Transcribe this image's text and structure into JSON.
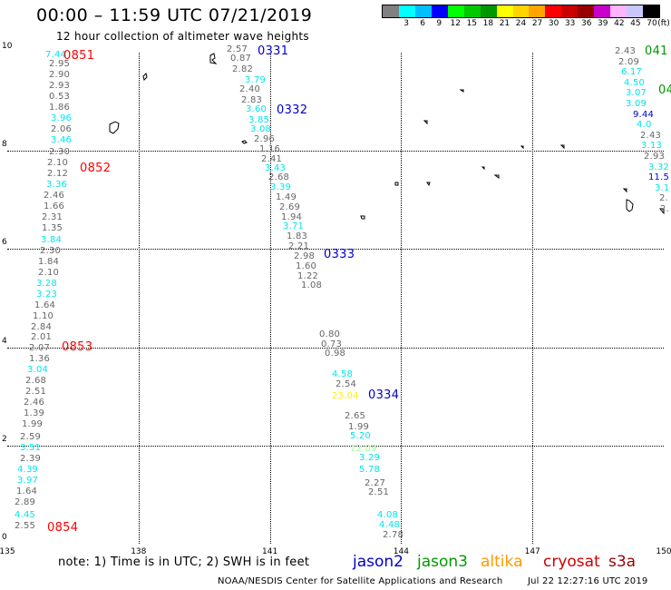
{
  "header": {
    "title": "00:00 – 11:59 UTC 07/21/2019",
    "subtitle": "12 hour collection of altimeter wave heights"
  },
  "colorbar": {
    "colors": [
      "#808080",
      "#00ffff",
      "#00bfff",
      "#0000ff",
      "#00ff00",
      "#00c800",
      "#009600",
      "#ffff00",
      "#ffd200",
      "#ffa500",
      "#ff0000",
      "#c80000",
      "#960000",
      "#c800c8",
      "#ffb4ff",
      "#c8c8ff",
      "#000000"
    ],
    "labels": [
      "3",
      "6",
      "9",
      "12",
      "15",
      "18",
      "21",
      "24",
      "27",
      "30",
      "33",
      "36",
      "39",
      "42",
      "45",
      "70"
    ],
    "unit": "(ft)"
  },
  "axes": {
    "x_ticks": [
      "135",
      "138",
      "141",
      "144",
      "147",
      "150"
    ],
    "y_ticks": [
      "0",
      "2",
      "4",
      "6",
      "8",
      "10"
    ]
  },
  "tracks": [
    {
      "satellite": "cryosat",
      "times": [
        {
          "label": "0851",
          "color": "#ff0000"
        },
        {
          "label": "0852",
          "color": "#ff0000"
        },
        {
          "label": "0853",
          "color": "#ff0000"
        },
        {
          "label": "0854",
          "color": "#ff0000"
        }
      ],
      "values": [
        {
          "v": "7.44",
          "c": "#00e5ee"
        },
        {
          "v": "2.95",
          "c": "#666666"
        },
        {
          "v": "2.90",
          "c": "#666666"
        },
        {
          "v": "2.93",
          "c": "#666666"
        },
        {
          "v": "0.53",
          "c": "#666666"
        },
        {
          "v": "1.86",
          "c": "#666666"
        },
        {
          "v": "3.96",
          "c": "#00e5ee"
        },
        {
          "v": "2.06",
          "c": "#666666"
        },
        {
          "v": "3.46",
          "c": "#00e5ee"
        },
        {
          "v": "2.30",
          "c": "#666666"
        },
        {
          "v": "2.10",
          "c": "#666666"
        },
        {
          "v": "2.12",
          "c": "#666666"
        },
        {
          "v": "3.36",
          "c": "#00e5ee"
        },
        {
          "v": "2.46",
          "c": "#666666"
        },
        {
          "v": "1.66",
          "c": "#666666"
        },
        {
          "v": "2.31",
          "c": "#666666"
        },
        {
          "v": "1.35",
          "c": "#666666"
        },
        {
          "v": "3.84",
          "c": "#00e5ee"
        },
        {
          "v": "2.30",
          "c": "#666666"
        },
        {
          "v": "1.84",
          "c": "#666666"
        },
        {
          "v": "2.10",
          "c": "#666666"
        },
        {
          "v": "3.28",
          "c": "#00e5ee"
        },
        {
          "v": "3.23",
          "c": "#00e5ee"
        },
        {
          "v": "1.64",
          "c": "#666666"
        },
        {
          "v": "1.10",
          "c": "#666666"
        },
        {
          "v": "2.84",
          "c": "#666666"
        },
        {
          "v": "2.01",
          "c": "#666666"
        },
        {
          "v": "2.07",
          "c": "#666666"
        },
        {
          "v": "1.36",
          "c": "#666666"
        },
        {
          "v": "3.04",
          "c": "#00e5ee"
        },
        {
          "v": "2.68",
          "c": "#666666"
        },
        {
          "v": "2.51",
          "c": "#666666"
        },
        {
          "v": "2.46",
          "c": "#666666"
        },
        {
          "v": "1.39",
          "c": "#666666"
        },
        {
          "v": "1.99",
          "c": "#666666"
        },
        {
          "v": "2.59",
          "c": "#666666"
        },
        {
          "v": "3.51",
          "c": "#00e5ee"
        },
        {
          "v": "2.39",
          "c": "#666666"
        },
        {
          "v": "4.39",
          "c": "#00e5ee"
        },
        {
          "v": "3.97",
          "c": "#00e5ee"
        },
        {
          "v": "1.64",
          "c": "#666666"
        },
        {
          "v": "2.89",
          "c": "#666666"
        },
        {
          "v": "4.45",
          "c": "#00e5ee"
        },
        {
          "v": "2.55",
          "c": "#666666"
        }
      ]
    },
    {
      "satellite": "jason2",
      "times": [
        {
          "label": "0331",
          "color": "#0000cc"
        },
        {
          "label": "0332",
          "color": "#0000cc"
        },
        {
          "label": "0333",
          "color": "#0000cc"
        },
        {
          "label": "0334",
          "color": "#0000cc"
        }
      ],
      "values": [
        {
          "v": "2.57",
          "c": "#666666"
        },
        {
          "v": "0.87",
          "c": "#666666"
        },
        {
          "v": "2.82",
          "c": "#666666"
        },
        {
          "v": "3.79",
          "c": "#00e5ee"
        },
        {
          "v": "2.40",
          "c": "#666666"
        },
        {
          "v": "2.83",
          "c": "#666666"
        },
        {
          "v": "3.60",
          "c": "#00e5ee"
        },
        {
          "v": "3.85",
          "c": "#00e5ee"
        },
        {
          "v": "3.08",
          "c": "#00e5ee"
        },
        {
          "v": "2.96",
          "c": "#666666"
        },
        {
          "v": "1.16",
          "c": "#666666"
        },
        {
          "v": "2.41",
          "c": "#666666"
        },
        {
          "v": "3.43",
          "c": "#00e5ee"
        },
        {
          "v": "2.68",
          "c": "#666666"
        },
        {
          "v": "3.39",
          "c": "#00e5ee"
        },
        {
          "v": "1.49",
          "c": "#666666"
        },
        {
          "v": "2.69",
          "c": "#666666"
        },
        {
          "v": "1.94",
          "c": "#666666"
        },
        {
          "v": "3.71",
          "c": "#00e5ee"
        },
        {
          "v": "1.83",
          "c": "#666666"
        },
        {
          "v": "2.21",
          "c": "#666666"
        },
        {
          "v": "2.98",
          "c": "#666666"
        },
        {
          "v": "1.60",
          "c": "#666666"
        },
        {
          "v": "1.22",
          "c": "#666666"
        },
        {
          "v": "1.08",
          "c": "#666666"
        },
        {
          "v": "0.80",
          "c": "#666666"
        },
        {
          "v": "0.73",
          "c": "#666666"
        },
        {
          "v": "0.98",
          "c": "#666666"
        },
        {
          "v": "4.58",
          "c": "#00e5ee"
        },
        {
          "v": "2.54",
          "c": "#666666"
        },
        {
          "v": "23.04",
          "c": "#ffee00"
        },
        {
          "v": "2.65",
          "c": "#666666"
        },
        {
          "v": "1.99",
          "c": "#666666"
        },
        {
          "v": "5.20",
          "c": "#00e5ee"
        },
        {
          "v": "12.09",
          "c": "#a0ff90"
        },
        {
          "v": "3.29",
          "c": "#00e5ee"
        },
        {
          "v": "5.78",
          "c": "#00e5ee"
        },
        {
          "v": "2.27",
          "c": "#666666"
        },
        {
          "v": "2.51",
          "c": "#666666"
        },
        {
          "v": "4.08",
          "c": "#00e5ee"
        },
        {
          "v": "4.48",
          "c": "#00e5ee"
        },
        {
          "v": "2.78",
          "c": "#666666"
        }
      ]
    },
    {
      "satellite": "jason3",
      "times": [
        {
          "label": "041",
          "color": "#009900"
        },
        {
          "label": "04",
          "color": "#009900"
        }
      ],
      "values": [
        {
          "v": "2.43",
          "c": "#666666"
        },
        {
          "v": "2.09",
          "c": "#666666"
        },
        {
          "v": "6.17",
          "c": "#00e5ee"
        },
        {
          "v": "4.50",
          "c": "#00e5ee"
        },
        {
          "v": "3.07",
          "c": "#00e5ee"
        },
        {
          "v": "3.09",
          "c": "#00e5ee"
        },
        {
          "v": "9.44",
          "c": "#0000cc"
        },
        {
          "v": "4.0",
          "c": "#00e5ee"
        },
        {
          "v": "2.43",
          "c": "#666666"
        },
        {
          "v": "3.13",
          "c": "#00e5ee"
        },
        {
          "v": "2.93",
          "c": "#666666"
        },
        {
          "v": "3.32",
          "c": "#00e5ee"
        },
        {
          "v": "11.5",
          "c": "#0000cc"
        },
        {
          "v": "3.1",
          "c": "#00e5ee"
        },
        {
          "v": "2.",
          "c": "#666666"
        },
        {
          "v": "2.",
          "c": "#666666"
        }
      ]
    }
  ],
  "footer": {
    "note": "note:  1) Time is in UTC;  2) SWH is in feet",
    "satellites": [
      {
        "name": "jason2",
        "color": "#0000cc"
      },
      {
        "name": "jason3",
        "color": "#009900"
      },
      {
        "name": "altika",
        "color": "#ff9900"
      },
      {
        "name": "cryosat",
        "color": "#cc0000"
      },
      {
        "name": "s3a",
        "color": "#990000"
      }
    ],
    "credit": "NOAA/NESDIS Center for Satellite Applications and Research",
    "timestamp": "Jul 22 12:27:16 UTC 2019"
  }
}
